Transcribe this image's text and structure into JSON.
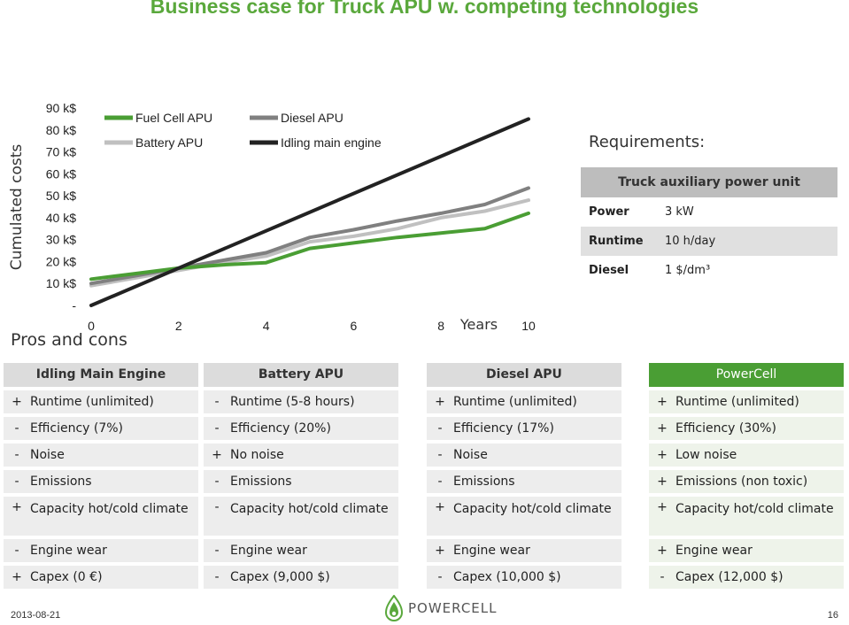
{
  "slide": {
    "title": "Business case for Truck APU w. competing technologies",
    "date": "2013-08-21",
    "page_number": "16"
  },
  "chart_data": {
    "type": "line",
    "ylabel": "Cumulated costs",
    "xlabel": "Years",
    "xlim": [
      0,
      10
    ],
    "ylim": [
      0,
      90
    ],
    "x_ticks": [
      "0",
      "2",
      "4",
      "6",
      "8",
      "10"
    ],
    "y_ticks": [
      "-",
      "10 k$",
      "20 k$",
      "30 k$",
      "40 k$",
      "50 k$",
      "60 k$",
      "70 k$",
      "80 k$",
      "90 k$"
    ],
    "legend": [
      "Fuel Cell APU",
      "Diesel APU",
      "Battery APU",
      "Idling main engine"
    ],
    "series": [
      {
        "name": "Fuel Cell APU",
        "color": "#4a9e34",
        "width": 4,
        "x": [
          0,
          1,
          2,
          3,
          4,
          5,
          6,
          7,
          8,
          9,
          10
        ],
        "y": [
          12,
          14.5,
          17,
          18.5,
          19.5,
          26,
          28.5,
          31,
          33,
          35,
          42
        ]
      },
      {
        "name": "Diesel APU",
        "color": "#808080",
        "width": 4,
        "x": [
          0,
          1,
          2,
          3,
          4,
          5,
          6,
          7,
          8,
          9,
          10
        ],
        "y": [
          10,
          13.5,
          17,
          20.5,
          24,
          31,
          34.5,
          38.5,
          42,
          46,
          53.5
        ]
      },
      {
        "name": "Battery APU",
        "color": "#c0c0c0",
        "width": 4,
        "x": [
          0,
          1,
          2,
          3,
          4,
          5,
          6,
          7,
          8,
          9,
          10
        ],
        "y": [
          9,
          12.5,
          16,
          19.5,
          22.5,
          29,
          31.5,
          35,
          40,
          43,
          48
        ]
      },
      {
        "name": "Idling main engine",
        "color": "#222222",
        "width": 4,
        "x": [
          0,
          10
        ],
        "y": [
          0,
          85
        ]
      }
    ]
  },
  "requirements": {
    "title": "Requirements:",
    "table_title": "Truck auxiliary power unit",
    "rows": [
      {
        "key": "Power",
        "value": "3 kW"
      },
      {
        "key": "Runtime",
        "value": "10 h/day"
      },
      {
        "key": "Diesel",
        "value": "1 $/dm³"
      }
    ]
  },
  "pros_cons": {
    "title": "Pros and cons",
    "columns": [
      {
        "header": "Idling Main Engine",
        "rows": [
          {
            "sign": "+",
            "text": "Runtime (unlimited)"
          },
          {
            "sign": "-",
            "text": "Efficiency (7%)"
          },
          {
            "sign": "-",
            "text": "Noise"
          },
          {
            "sign": "-",
            "text": "Emissions"
          },
          {
            "sign": "+",
            "text": "Capacity hot/cold climate"
          },
          {
            "sign": "-",
            "text": "Engine wear"
          },
          {
            "sign": "+",
            "text": "Capex (0 €)"
          }
        ]
      },
      {
        "header": "Battery APU",
        "rows": [
          {
            "sign": "-",
            "text": "Runtime (5-8 hours)"
          },
          {
            "sign": "-",
            "text": "Efficiency (20%)"
          },
          {
            "sign": "+",
            "text": "No noise"
          },
          {
            "sign": "-",
            "text": "Emissions"
          },
          {
            "sign": "-",
            "text": "Capacity hot/cold climate"
          },
          {
            "sign": "-",
            "text": "Engine wear"
          },
          {
            "sign": "-",
            "text": "Capex (9,000 $)"
          }
        ]
      },
      {
        "header": "Diesel APU",
        "rows": [
          {
            "sign": "+",
            "text": "Runtime (unlimited)"
          },
          {
            "sign": "-",
            "text": "Efficiency (17%)"
          },
          {
            "sign": "-",
            "text": "Noise"
          },
          {
            "sign": "-",
            "text": "Emissions"
          },
          {
            "sign": "+",
            "text": "Capacity hot/cold climate"
          },
          {
            "sign": "+",
            "text": "Engine wear"
          },
          {
            "sign": "-",
            "text": "Capex (10,000 $)"
          }
        ]
      },
      {
        "header": "PowerCell",
        "rows": [
          {
            "sign": "+",
            "text": "Runtime (unlimited)"
          },
          {
            "sign": "+",
            "text": "Efficiency (30%)"
          },
          {
            "sign": "+",
            "text": "Low noise"
          },
          {
            "sign": "+",
            "text": "Emissions (non toxic)"
          },
          {
            "sign": "+",
            "text": "Capacity hot/cold climate"
          },
          {
            "sign": "+",
            "text": "Engine wear"
          },
          {
            "sign": "-",
            "text": "Capex (12,000 $)"
          }
        ]
      }
    ]
  },
  "logo": {
    "icon": "leaf-drop-icon",
    "text": "POWERCELL"
  }
}
